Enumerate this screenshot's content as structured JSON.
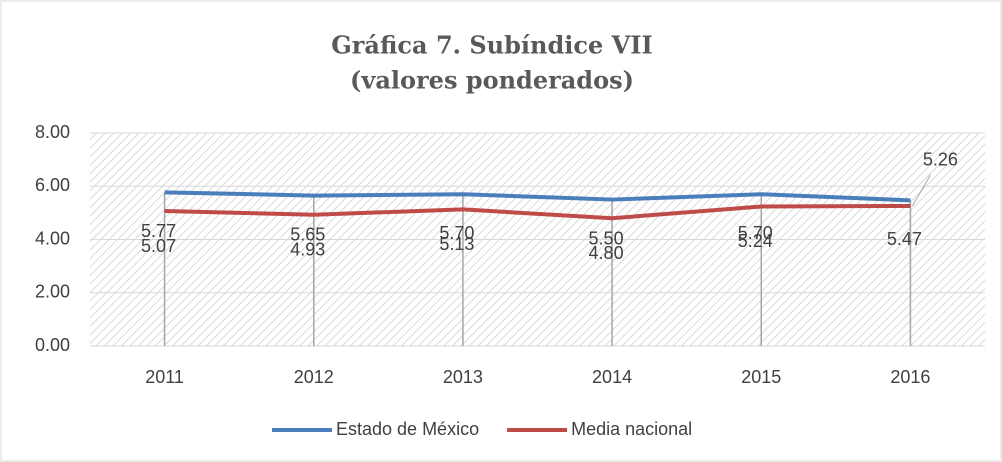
{
  "chart_data": {
    "type": "line",
    "title": "Gráfica 7. Subíndice VII",
    "subtitle": "(valores ponderados)",
    "categories": [
      "2011",
      "2012",
      "2013",
      "2014",
      "2015",
      "2016"
    ],
    "series": [
      {
        "name": "Estado de México",
        "color": "#4a7ebb",
        "values": [
          5.77,
          5.65,
          5.7,
          5.5,
          5.7,
          5.47
        ],
        "value_labels": [
          "5.77",
          "5.65",
          "5.70",
          "5.50",
          "5.70",
          "5.47"
        ]
      },
      {
        "name": "Media nacional",
        "color": "#be4b48",
        "values": [
          5.07,
          4.93,
          5.13,
          4.8,
          5.24,
          5.26
        ],
        "value_labels": [
          "5.07",
          "4.93",
          "5.13",
          "4.80",
          "5.24",
          "5.26"
        ]
      }
    ],
    "ylim": [
      0,
      8
    ],
    "yticks": [
      {
        "value": 0,
        "label": "0.00"
      },
      {
        "value": 2,
        "label": "2.00"
      },
      {
        "value": 4,
        "label": "4.00"
      },
      {
        "value": 6,
        "label": "6.00"
      },
      {
        "value": 8,
        "label": "8.00"
      }
    ],
    "grid": true,
    "legend": "bottom"
  }
}
